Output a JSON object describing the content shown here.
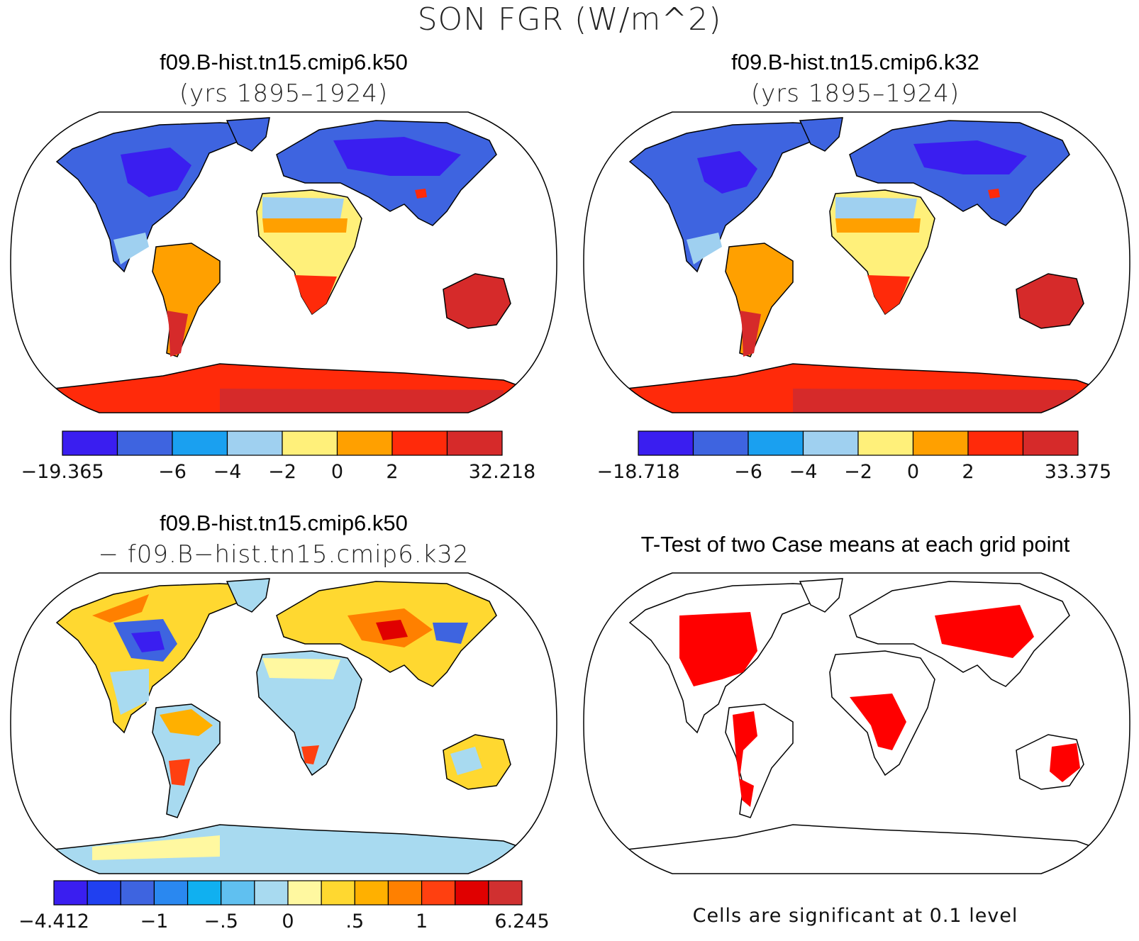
{
  "title": "SON FGR (W/m^2)",
  "panels": {
    "top_left": {
      "title": "f09.B-hist.tn15.cmip6.k50",
      "subtitle": "(yrs 1895–1924)",
      "colorbar": {
        "colors": [
          "#3a1ef0",
          "#3e64e0",
          "#1aa0f0",
          "#9fd0f0",
          "#fff07a",
          "#ffa000",
          "#ff2a0a",
          "#d62a2a"
        ],
        "labels": [
          "−19.365",
          "−6",
          "−4",
          "−2",
          "0",
          "2",
          "32.218"
        ],
        "values": [
          -19.365,
          -6,
          -4,
          -2,
          0,
          2,
          32.218
        ]
      }
    },
    "top_right": {
      "title": "f09.B-hist.tn15.cmip6.k32",
      "subtitle": "(yrs 1895–1924)",
      "colorbar": {
        "colors": [
          "#3a1ef0",
          "#3e64e0",
          "#1aa0f0",
          "#9fd0f0",
          "#fff07a",
          "#ffa000",
          "#ff2a0a",
          "#d62a2a"
        ],
        "labels": [
          "−18.718",
          "−6",
          "−4",
          "−2",
          "0",
          "2",
          "33.375"
        ],
        "values": [
          -18.718,
          -6,
          -4,
          -2,
          0,
          2,
          33.375
        ]
      }
    },
    "bottom_left": {
      "title": "f09.B-hist.tn15.cmip6.k50",
      "subtitle": "− f09.B−hist.tn15.cmip6.k32",
      "colorbar": {
        "colors": [
          "#3a1ef0",
          "#2040f0",
          "#3e64e0",
          "#2a88f0",
          "#10b0f0",
          "#60c0f0",
          "#a8daf0",
          "#fff8a0",
          "#ffd830",
          "#ffb000",
          "#ff8000",
          "#ff4010",
          "#e00000",
          "#d03030"
        ],
        "labels": [
          "−4.412",
          "−1",
          "−.5",
          "0",
          ".5",
          "1",
          "6.245"
        ],
        "values": [
          -4.412,
          -1,
          -0.5,
          0,
          0.5,
          1,
          6.245
        ]
      }
    },
    "bottom_right": {
      "title": "T-Test of two Case means at each grid point",
      "note": "Cells are significant at 0.1 level",
      "significant_color": "#ff0000"
    }
  }
}
